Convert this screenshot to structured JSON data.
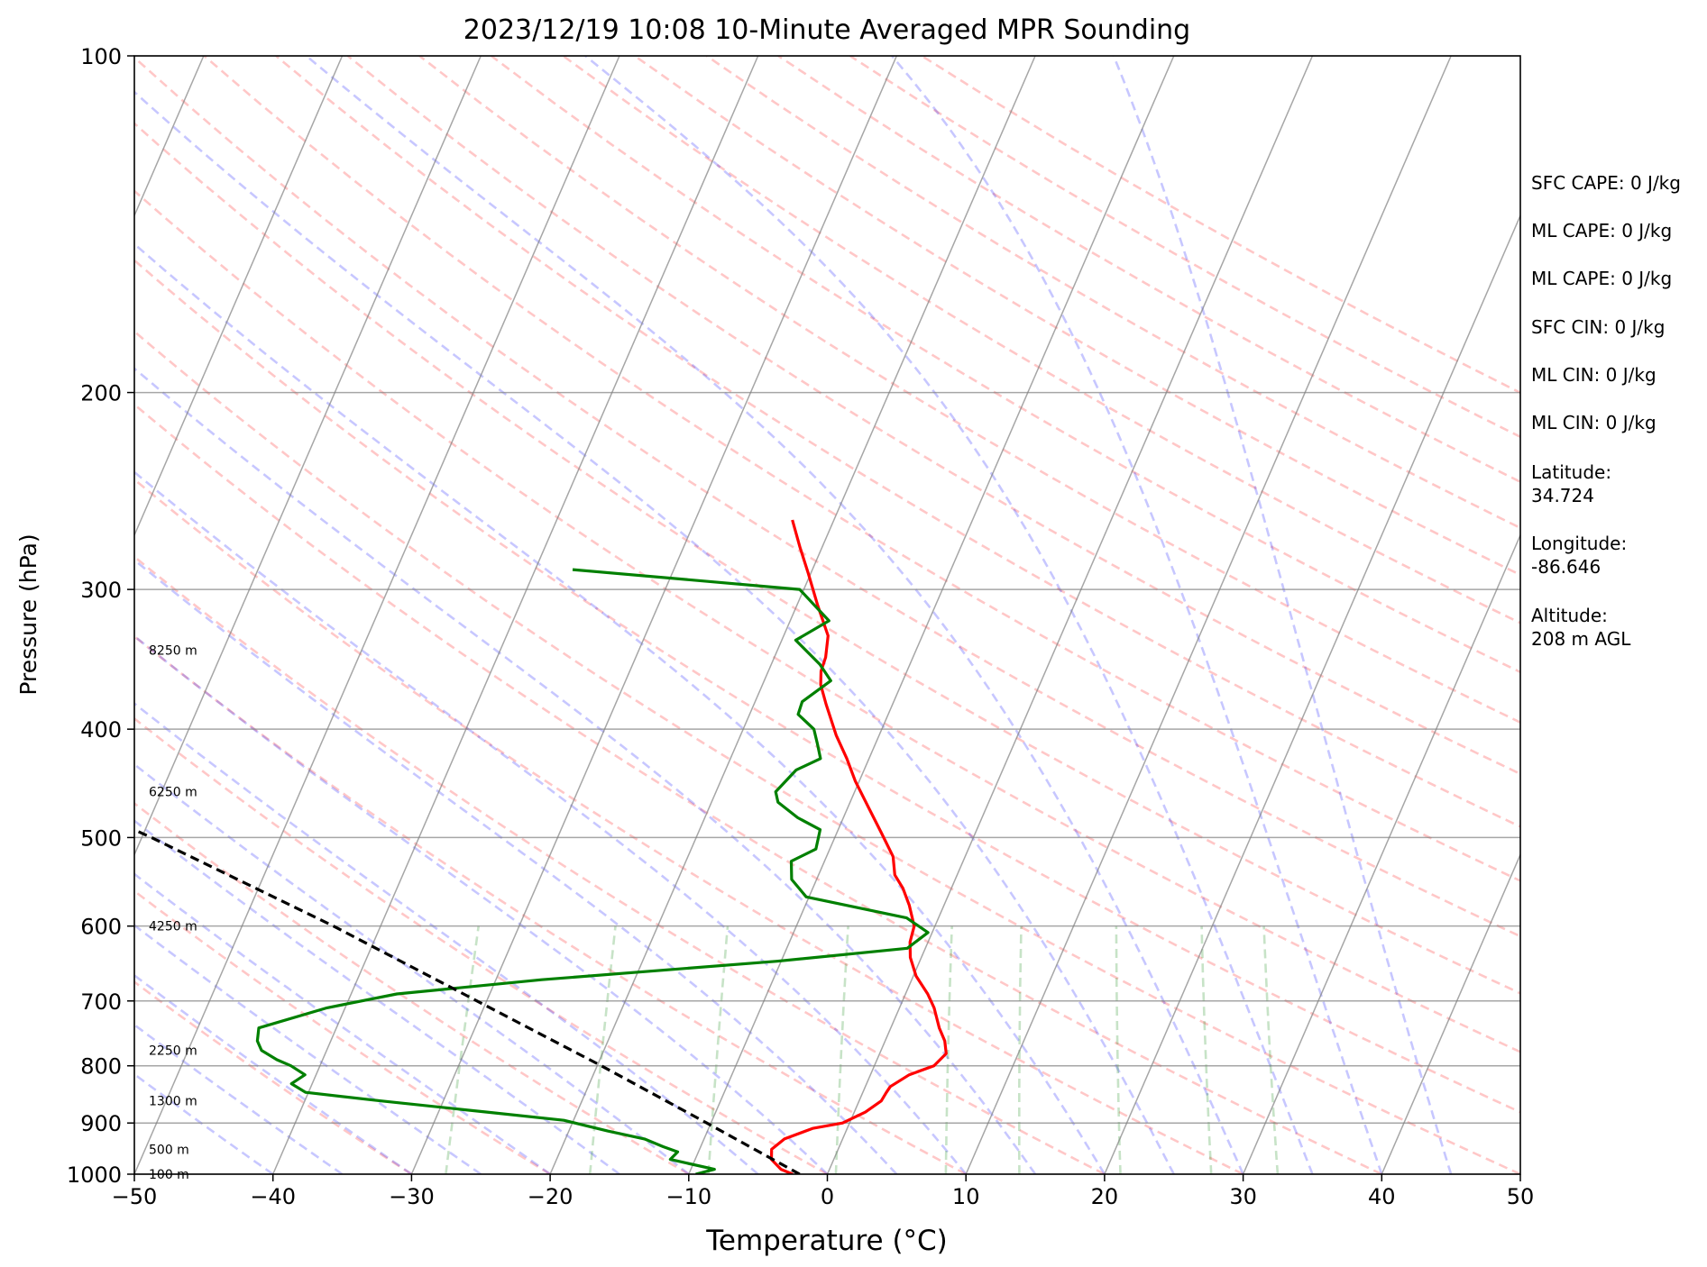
{
  "chart_data": {
    "type": "line",
    "title": "2023/12/19 10:08 10-Minute Averaged MPR Sounding",
    "xlabel": "Temperature (°C)",
    "ylabel": "Pressure (hPa)",
    "xlim": [
      -50,
      50
    ],
    "ylim": [
      1000,
      100
    ],
    "y_scale": "log",
    "grid": true,
    "x_ticks": [
      -50,
      -40,
      -30,
      -20,
      -10,
      0,
      10,
      20,
      30,
      40,
      50
    ],
    "x_tick_labels": [
      "−50",
      "−40",
      "−30",
      "−20",
      "−10",
      "0",
      "10",
      "20",
      "30",
      "40",
      "50"
    ],
    "y_ticks": [
      100,
      200,
      300,
      400,
      500,
      600,
      700,
      800,
      900,
      1000
    ],
    "y_tick_labels": [
      "100",
      "200",
      "300",
      "400",
      "500",
      "600",
      "700",
      "800",
      "900",
      "1000"
    ],
    "series": [
      {
        "color": "#ff0000",
        "pressure": [
          1000,
          990,
          970,
          950,
          930,
          910,
          900,
          880,
          860,
          845,
          835,
          815,
          800,
          780,
          760,
          740,
          710,
          690,
          665,
          640,
          620,
          600,
          575,
          555,
          540,
          520,
          495,
          470,
          445,
          425,
          405,
          380,
          365,
          355,
          345,
          330,
          310,
          290,
          275,
          260
        ],
        "temperature": [
          -2.5,
          -3.5,
          -4.5,
          -4.8,
          -4.2,
          -2.5,
          -0.5,
          0.8,
          1.6,
          1.7,
          1.8,
          2.8,
          4.3,
          4.8,
          4.3,
          3.5,
          2.5,
          1.6,
          0.2,
          -0.8,
          -1.3,
          -1.5,
          -2.5,
          -3.5,
          -4.5,
          -5.2,
          -6.8,
          -8.5,
          -10.3,
          -11.6,
          -13.1,
          -14.8,
          -15.8,
          -16.2,
          -16.3,
          -16.8,
          -18.5,
          -20.2,
          -21.6,
          -23.0
        ]
      },
      {
        "color": "#008000",
        "pressure": [
          1000,
          990,
          970,
          955,
          945,
          930,
          915,
          895,
          880,
          860,
          845,
          830,
          815,
          800,
          790,
          775,
          760,
          740,
          710,
          690,
          670,
          645,
          628,
          608,
          590,
          565,
          545,
          525,
          512,
          492,
          480,
          465,
          455,
          435,
          425,
          412,
          400,
          388,
          378,
          362,
          350,
          333,
          320,
          300,
          288
        ],
        "dewpoint": [
          -9.5,
          -8.3,
          -11.8,
          -11.5,
          -12.7,
          -14.3,
          -17.2,
          -20.7,
          -26.5,
          -34.5,
          -40.2,
          -41.5,
          -40.8,
          -42.1,
          -43.3,
          -44.7,
          -45.3,
          -45.6,
          -41.3,
          -36.7,
          -26.7,
          -10.3,
          -1.3,
          -0.3,
          -2.3,
          -10.2,
          -11.8,
          -12.4,
          -11.0,
          -11.3,
          -13.3,
          -15.2,
          -15.7,
          -14.9,
          -13.5,
          -14.2,
          -14.9,
          -16.5,
          -16.6,
          -15.2,
          -16.5,
          -19.0,
          -17.2,
          -20.3,
          -37.3
        ]
      },
      {
        "color": "#000000",
        "pressure": [
          1000,
          900,
          800,
          700,
          600,
          500,
          400,
          330
        ],
        "temperature": [
          -2.0,
          -10.3,
          -19.7,
          -30.7,
          -43.4,
          -59.3,
          -80.1,
          -99.2
        ]
      }
    ],
    "height_labels": [
      "8250 m",
      "6250 m",
      "4250 m",
      "2250 m",
      "1300 m",
      "500 m",
      "100 m"
    ],
    "height_label_pressures": [
      340,
      455,
      600,
      775,
      860,
      950,
      1000
    ],
    "background_lines": {
      "dry_adiabats_color": "#ff0000",
      "moist_adiabats_color": "#0000ff",
      "mixing_ratio_color": "#008000",
      "isotherms_color": "#808080",
      "isobars_color": "#808080"
    }
  },
  "info": [
    "SFC CAPE: 0 J/kg",
    "ML CAPE: 0 J/kg",
    "ML CAPE: 0 J/kg",
    "SFC CIN: 0 J/kg",
    "ML CIN: 0 J/kg",
    "ML CIN: 0 J/kg",
    "Latitude:",
    "34.724",
    "Longitude:",
    "-86.646",
    "Altitude:",
    "208 m AGL"
  ]
}
